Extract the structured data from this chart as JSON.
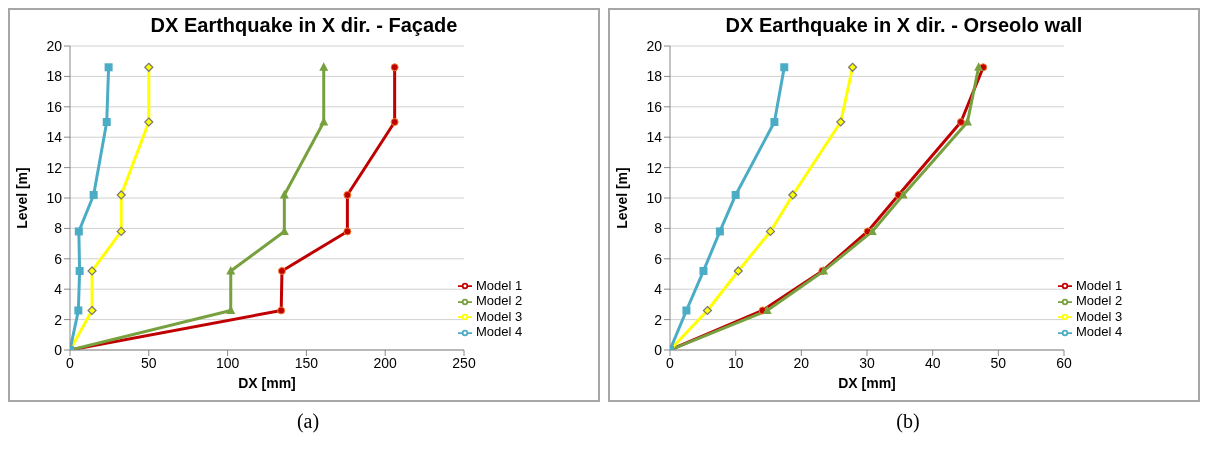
{
  "chart_data": [
    {
      "type": "line",
      "title": "DX Earthquake in X dir. - Façade",
      "xlabel": "DX  [mm]",
      "ylabel": "Level [m]",
      "xlim": [
        0,
        250
      ],
      "xticks": [
        0,
        50,
        100,
        150,
        200,
        250
      ],
      "ylim": [
        0,
        20
      ],
      "yticks": [
        0,
        2,
        4,
        6,
        8,
        10,
        12,
        14,
        16,
        18,
        20
      ],
      "grid": "y",
      "legend": "bottom right",
      "annotations": [
        "(a)"
      ],
      "series": [
        {
          "name": "Model 1",
          "color": "#c00000",
          "marker": "circle",
          "x": [
            0,
            134,
            134.5,
            176,
            176,
            206,
            206
          ],
          "values": [
            0,
            2.6,
            5.2,
            7.8,
            10.2,
            15,
            18.6
          ]
        },
        {
          "name": "Model 2",
          "color": "#77a03e",
          "marker": "triangle",
          "x": [
            0,
            102,
            102,
            136,
            136,
            161,
            161
          ],
          "values": [
            0,
            2.6,
            5.2,
            7.8,
            10.2,
            15,
            18.6
          ]
        },
        {
          "name": "Model 3",
          "color": "#ffff00",
          "marker": "diamond",
          "x": [
            0,
            14,
            14,
            32.5,
            32.5,
            50,
            50
          ],
          "values": [
            0,
            2.6,
            5.2,
            7.8,
            10.2,
            15,
            18.6
          ]
        },
        {
          "name": "Model 4",
          "color": "#4bacc6",
          "marker": "square",
          "x": [
            0,
            5.3,
            6.1,
            5.6,
            15,
            23.3,
            24.5
          ],
          "values": [
            0,
            2.6,
            5.2,
            7.8,
            10.2,
            15,
            18.6
          ]
        }
      ]
    },
    {
      "type": "line",
      "title": "DX Earthquake in X dir. - Orseolo wall",
      "xlabel": "DX  [mm]",
      "ylabel": "Level [m]",
      "xlim": [
        0,
        60
      ],
      "xticks": [
        0,
        10,
        20,
        30,
        40,
        50,
        60
      ],
      "ylim": [
        0,
        20
      ],
      "yticks": [
        0,
        2,
        4,
        6,
        8,
        10,
        12,
        14,
        16,
        18,
        20
      ],
      "grid": "y",
      "legend": "bottom right",
      "annotations": [
        "(b)"
      ],
      "series": [
        {
          "name": "Model 1",
          "color": "#c00000",
          "marker": "circle",
          "x": [
            0,
            14.1,
            23.2,
            30.1,
            34.8,
            44.3,
            47.7
          ],
          "values": [
            0,
            2.6,
            5.2,
            7.8,
            10.2,
            15,
            18.6
          ]
        },
        {
          "name": "Model 2",
          "color": "#77a03e",
          "marker": "triangle",
          "x": [
            0,
            14.8,
            23.4,
            30.8,
            35.5,
            45.3,
            47
          ],
          "values": [
            0,
            2.6,
            5.2,
            7.8,
            10.2,
            15,
            18.6
          ]
        },
        {
          "name": "Model 3",
          "color": "#ffff00",
          "marker": "diamond",
          "x": [
            0,
            5.7,
            10.4,
            15.3,
            18.7,
            26,
            27.8
          ],
          "values": [
            0,
            2.6,
            5.2,
            7.8,
            10.2,
            15,
            18.6
          ]
        },
        {
          "name": "Model 4",
          "color": "#4bacc6",
          "marker": "square",
          "x": [
            0,
            2.5,
            5.1,
            7.6,
            10,
            15.9,
            17.4
          ],
          "values": [
            0,
            2.6,
            5.2,
            7.8,
            10.2,
            15,
            18.6
          ]
        }
      ]
    }
  ]
}
